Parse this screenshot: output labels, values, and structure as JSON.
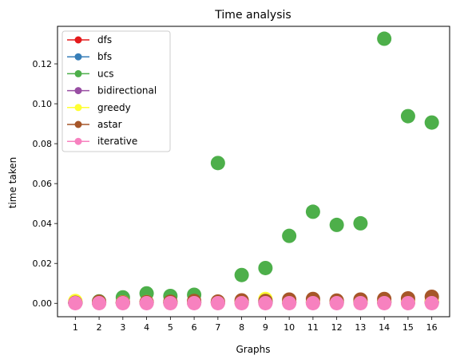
{
  "chart_data": {
    "type": "scatter",
    "title": "Time analysis",
    "xlabel": "Graphs",
    "ylabel": "time taken",
    "x": [
      1,
      2,
      3,
      4,
      5,
      6,
      7,
      8,
      9,
      10,
      11,
      12,
      13,
      14,
      15,
      16
    ],
    "xlim": [
      0.25,
      16.75
    ],
    "ylim": [
      -0.0067,
      0.1388
    ],
    "yticks": [
      0.0,
      0.02,
      0.04,
      0.06,
      0.08,
      0.1,
      0.12
    ],
    "ytick_labels": [
      "0.00",
      "0.02",
      "0.04",
      "0.06",
      "0.08",
      "0.10",
      "0.12"
    ],
    "grid": false,
    "legend_position": "top-left",
    "series": [
      {
        "name": "dfs",
        "color": "#e41a1c",
        "values": [
          0.0003,
          0.0003,
          0.0003,
          0.0004,
          0.0004,
          0.0004,
          0.0004,
          0.0005,
          0.0005,
          0.0005,
          0.0005,
          0.0005,
          0.0006,
          0.0006,
          0.0006,
          0.0006
        ]
      },
      {
        "name": "bfs",
        "color": "#377eb8",
        "values": [
          0.0003,
          0.0003,
          0.0003,
          0.0004,
          0.0004,
          0.0004,
          0.0004,
          0.0005,
          0.0005,
          0.0005,
          0.0005,
          0.0005,
          0.0006,
          0.0006,
          0.0006,
          0.0006
        ]
      },
      {
        "name": "ucs",
        "color": "#4daf4a",
        "values": [
          0.0005,
          0.001,
          0.003,
          0.005,
          0.0037,
          0.0043,
          0.0703,
          0.0142,
          0.0177,
          0.0338,
          0.0459,
          0.0393,
          0.0401,
          0.1326,
          0.0938,
          0.0906
        ]
      },
      {
        "name": "bidirectional",
        "color": "#984ea3",
        "values": [
          0.0004,
          0.0004,
          0.0005,
          0.0005,
          0.0005,
          0.0006,
          0.0006,
          0.0007,
          0.0008,
          0.0008,
          0.0009,
          0.0009,
          0.001,
          0.001,
          0.0011,
          0.0011
        ]
      },
      {
        "name": "greedy",
        "color": "#ffff33",
        "values": [
          0.0012,
          0.0005,
          0.0005,
          0.0006,
          0.0006,
          0.0006,
          0.0006,
          0.0007,
          0.0022,
          0.0008,
          0.0009,
          0.0009,
          0.001,
          0.001,
          0.0011,
          0.0012
        ]
      },
      {
        "name": "astar",
        "color": "#a65628",
        "values": [
          0.0003,
          0.0008,
          0.0004,
          0.0006,
          0.0008,
          0.0012,
          0.0009,
          0.0015,
          0.0012,
          0.0019,
          0.0022,
          0.0014,
          0.0019,
          0.0022,
          0.0025,
          0.0033
        ]
      },
      {
        "name": "iterative",
        "color": "#f781bf",
        "values": [
          0.0001,
          0.0001,
          0.0001,
          0.0001,
          0.0001,
          0.0001,
          0.0001,
          0.0001,
          0.0001,
          0.0001,
          0.0001,
          0.0001,
          0.0001,
          0.0001,
          0.0001,
          0.0001
        ]
      }
    ]
  }
}
